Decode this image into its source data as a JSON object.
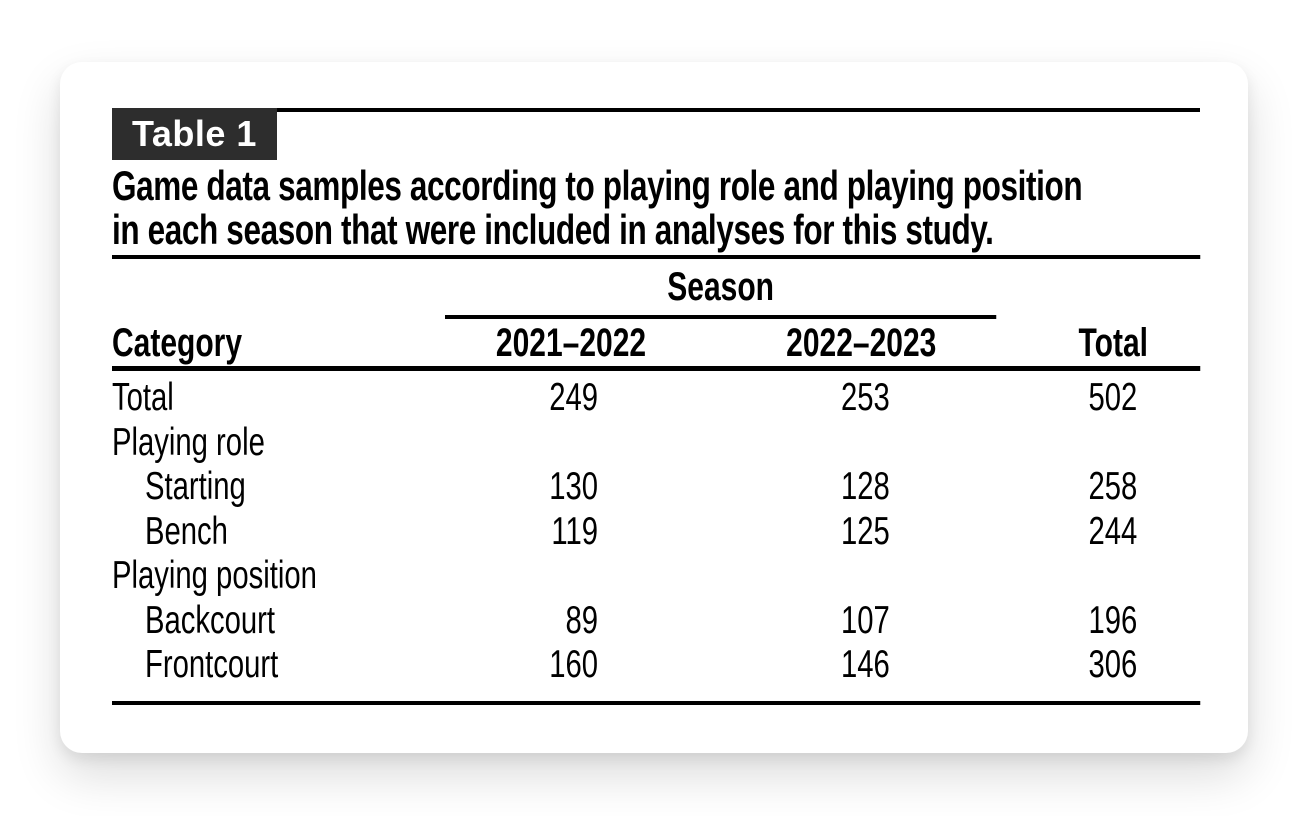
{
  "table_label": "Table 1",
  "caption_line1": "Game data samples according to playing role and playing position",
  "caption_line2": "in each season that were included in analyses for this study.",
  "header": {
    "season_group": "Season",
    "category": "Category",
    "col1": "2021–2022",
    "col2": "2022–2023",
    "total": "Total"
  },
  "rows": [
    {
      "label": "Total",
      "c1": "249",
      "c2": "253",
      "c3": "502"
    },
    {
      "label": "Playing role",
      "c1": "",
      "c2": "",
      "c3": ""
    },
    {
      "label": "Starting",
      "c1": "130",
      "c2": "128",
      "c3": "258"
    },
    {
      "label": "Bench",
      "c1": "119",
      "c2": "125",
      "c3": "244"
    },
    {
      "label": "Playing position",
      "c1": "",
      "c2": "",
      "c3": ""
    },
    {
      "label": "Backcourt",
      "c1": "89",
      "c2": "107",
      "c3": "196"
    },
    {
      "label": "Frontcourt",
      "c1": "160",
      "c2": "146",
      "c3": "306"
    }
  ],
  "colors": {
    "chip_bg": "#2d2d2d",
    "text": "#000000",
    "rule": "#000000",
    "card_bg": "#ffffff"
  }
}
